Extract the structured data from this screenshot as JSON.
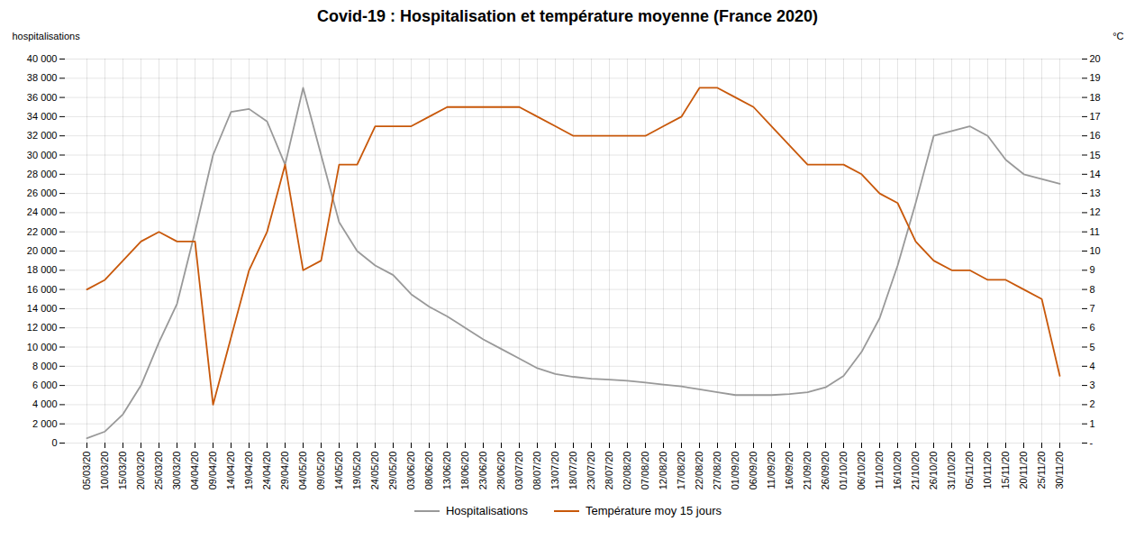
{
  "chart_data": {
    "type": "line",
    "title": "Covid-19 : Hospitalisation et température moyenne (France 2020)",
    "categories": [
      "05/03/20",
      "10/03/20",
      "15/03/20",
      "20/03/20",
      "25/03/20",
      "30/03/20",
      "04/04/20",
      "09/04/20",
      "14/04/20",
      "19/04/20",
      "24/04/20",
      "29/04/20",
      "04/05/20",
      "09/05/20",
      "14/05/20",
      "19/05/20",
      "24/05/20",
      "29/05/20",
      "03/06/20",
      "08/06/20",
      "13/06/20",
      "18/06/20",
      "23/06/20",
      "28/06/20",
      "03/07/20",
      "08/07/20",
      "13/07/20",
      "18/07/20",
      "23/07/20",
      "28/07/20",
      "02/08/20",
      "07/08/20",
      "12/08/20",
      "17/08/20",
      "22/08/20",
      "27/08/20",
      "01/09/20",
      "06/09/20",
      "11/09/20",
      "16/09/20",
      "21/09/20",
      "26/09/20",
      "01/10/20",
      "06/10/20",
      "11/10/20",
      "16/10/20",
      "21/10/20",
      "26/10/20",
      "31/10/20",
      "05/11/20",
      "10/11/20",
      "15/11/20",
      "20/11/20",
      "25/11/20",
      "30/11/20"
    ],
    "series": [
      {
        "name": "Hospitalisations",
        "color": "#999999",
        "values": [
          500,
          1200,
          3000,
          6000,
          10500,
          14500,
          22000,
          30000,
          34500,
          34800,
          33500,
          29000,
          37000,
          30000,
          23000,
          20000,
          18500,
          17500,
          15500,
          14200,
          13200,
          12000,
          10800,
          9800,
          8800,
          7800,
          7200,
          6900,
          6700,
          6600,
          6500,
          6300,
          6100,
          5900,
          5600,
          5300,
          5000,
          5000,
          5000,
          5100,
          5300,
          5800,
          7000,
          9500,
          13000,
          18500,
          25000,
          32000,
          32500,
          33000,
          32000,
          29500,
          28000,
          27500,
          27000
        ]
      },
      {
        "name": "Température moy 15 jours",
        "color": "#C8580A",
        "axis": "y2",
        "values": [
          8.0,
          8.5,
          9.5,
          10.5,
          11.0,
          10.5,
          10.5,
          2.0,
          5.5,
          9.0,
          11.0,
          14.5,
          9.0,
          9.5,
          14.5,
          14.5,
          16.5,
          16.5,
          16.5,
          17.0,
          17.5,
          17.5,
          17.5,
          17.5,
          17.5,
          17.0,
          16.5,
          16.0,
          16.0,
          16.0,
          16.0,
          16.0,
          16.5,
          17.0,
          18.5,
          18.5,
          18.0,
          17.5,
          16.5,
          15.5,
          14.5,
          14.5,
          14.5,
          14.0,
          13.0,
          12.5,
          10.5,
          9.5,
          9.0,
          9.0,
          8.5,
          8.5,
          8.0,
          7.5,
          3.5
        ]
      }
    ],
    "ylabel": "hospitalisations",
    "y2label": "°C",
    "ylim": [
      0,
      40000
    ],
    "yticks": [
      0,
      {
        "value": 2000,
        "label": "2 000"
      },
      {
        "value": 4000,
        "label": "4 000"
      },
      {
        "value": 6000,
        "label": "6 000"
      },
      {
        "value": 8000,
        "label": "8 000"
      },
      {
        "value": 10000,
        "label": "10 000"
      },
      {
        "value": 12000,
        "label": "12 000"
      },
      {
        "value": 14000,
        "label": "14 000"
      },
      {
        "value": 16000,
        "label": "16 000"
      },
      {
        "value": 18000,
        "label": "18 000"
      },
      {
        "value": 20000,
        "label": "20 000"
      },
      {
        "value": 22000,
        "label": "22 000"
      },
      {
        "value": 24000,
        "label": "24 000"
      },
      {
        "value": 26000,
        "label": "26 000"
      },
      {
        "value": 28000,
        "label": "28 000"
      },
      {
        "value": 30000,
        "label": "30 000"
      },
      {
        "value": 32000,
        "label": "32 000"
      },
      {
        "value": 34000,
        "label": "34 000"
      },
      {
        "value": 36000,
        "label": "36 000"
      },
      {
        "value": 38000,
        "label": "38 000"
      },
      {
        "value": 40000,
        "label": "40 000"
      }
    ],
    "y2lim": [
      0,
      20
    ],
    "y2ticks": [
      {
        "value": 0,
        "label": "-"
      },
      1,
      2,
      3,
      4,
      5,
      6,
      7,
      8,
      9,
      10,
      11,
      12,
      13,
      14,
      15,
      16,
      17,
      18,
      19,
      20
    ],
    "grid": true,
    "legend": "bottom"
  }
}
